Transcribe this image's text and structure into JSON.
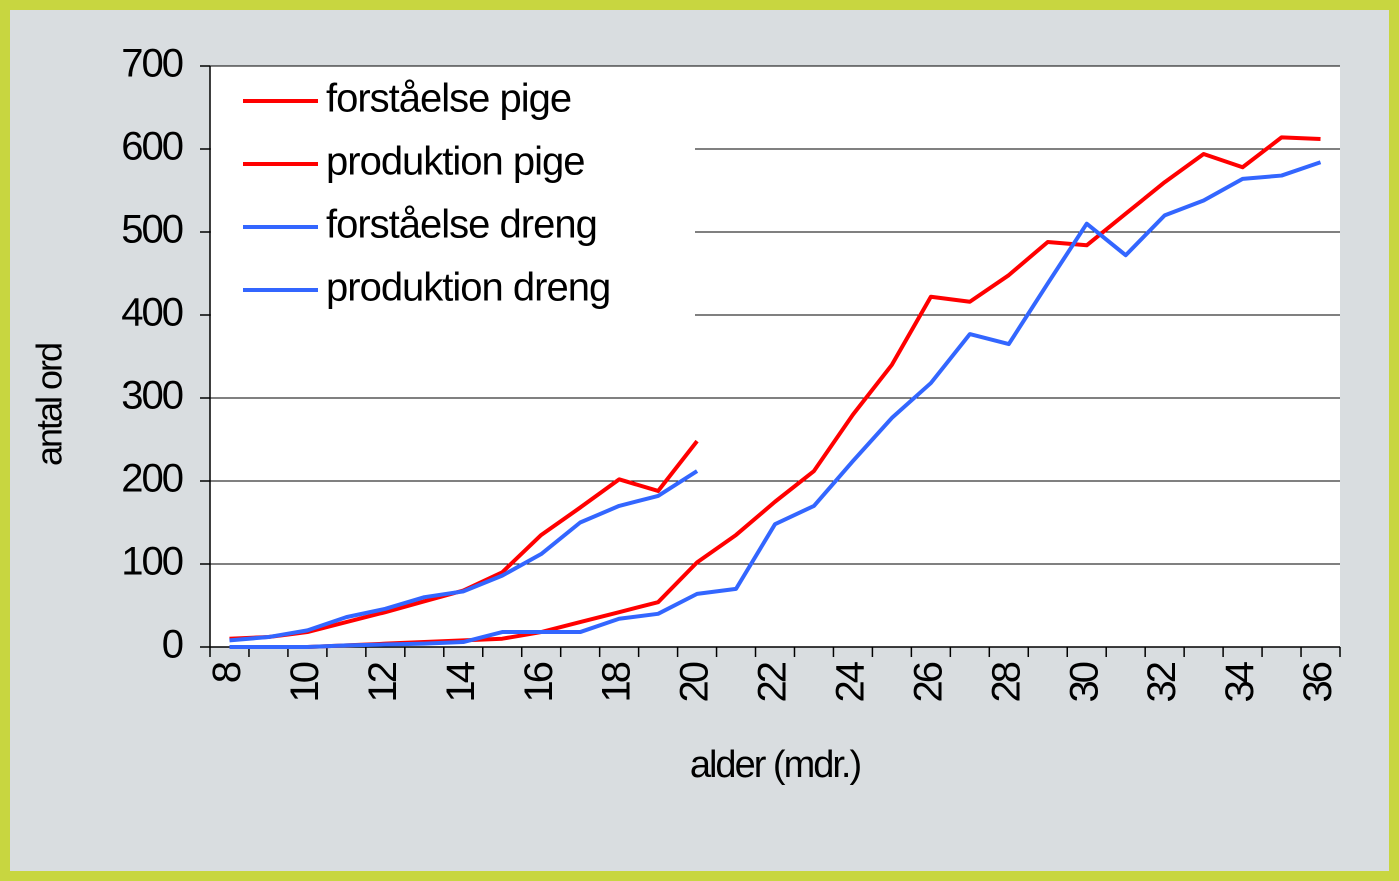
{
  "chart_data": {
    "type": "line",
    "xlabel": "alder (mdr.)",
    "ylabel": "antal ord",
    "categories": [
      "8",
      null,
      "10",
      null,
      "12",
      null,
      "14",
      null,
      "16",
      null,
      "18",
      null,
      "20",
      null,
      "22",
      null,
      "24",
      null,
      "26",
      null,
      "28",
      null,
      "30",
      null,
      "32",
      null,
      "34",
      null,
      "36"
    ],
    "series": [
      {
        "name": "forståelse pige",
        "color": "#ff0000",
        "values": [
          10,
          12,
          18,
          30,
          42,
          55,
          68,
          90,
          135,
          168,
          202,
          188,
          248,
          null,
          null,
          null,
          null,
          null,
          null,
          null,
          null,
          null,
          null,
          null,
          null,
          null,
          null,
          null,
          null
        ]
      },
      {
        "name": "produktion pige",
        "color": "#ff0000",
        "values": [
          0,
          0,
          0,
          2,
          4,
          6,
          8,
          10,
          18,
          30,
          42,
          54,
          102,
          135,
          175,
          212,
          280,
          340,
          422,
          416,
          448,
          488,
          484,
          522,
          560,
          594,
          578,
          614,
          612
        ]
      },
      {
        "name": "forståelse dreng",
        "color": "#3366ff",
        "values": [
          8,
          12,
          20,
          36,
          46,
          60,
          67,
          86,
          112,
          150,
          170,
          182,
          212,
          null,
          null,
          null,
          null,
          null,
          null,
          null,
          null,
          null,
          null,
          null,
          null,
          null,
          null,
          null,
          null
        ]
      },
      {
        "name": "produktion dreng",
        "color": "#3366ff",
        "values": [
          0,
          0,
          0,
          2,
          3,
          4,
          6,
          18,
          18,
          18,
          34,
          40,
          64,
          70,
          148,
          170,
          224,
          276,
          318,
          377,
          365,
          438,
          510,
          472,
          520,
          538,
          564,
          568,
          584
        ]
      }
    ],
    "ylim": [
      0,
      700
    ],
    "yticks": [
      0,
      100,
      200,
      300,
      400,
      500,
      600,
      700
    ],
    "grid": true,
    "legend": "upper left"
  }
}
